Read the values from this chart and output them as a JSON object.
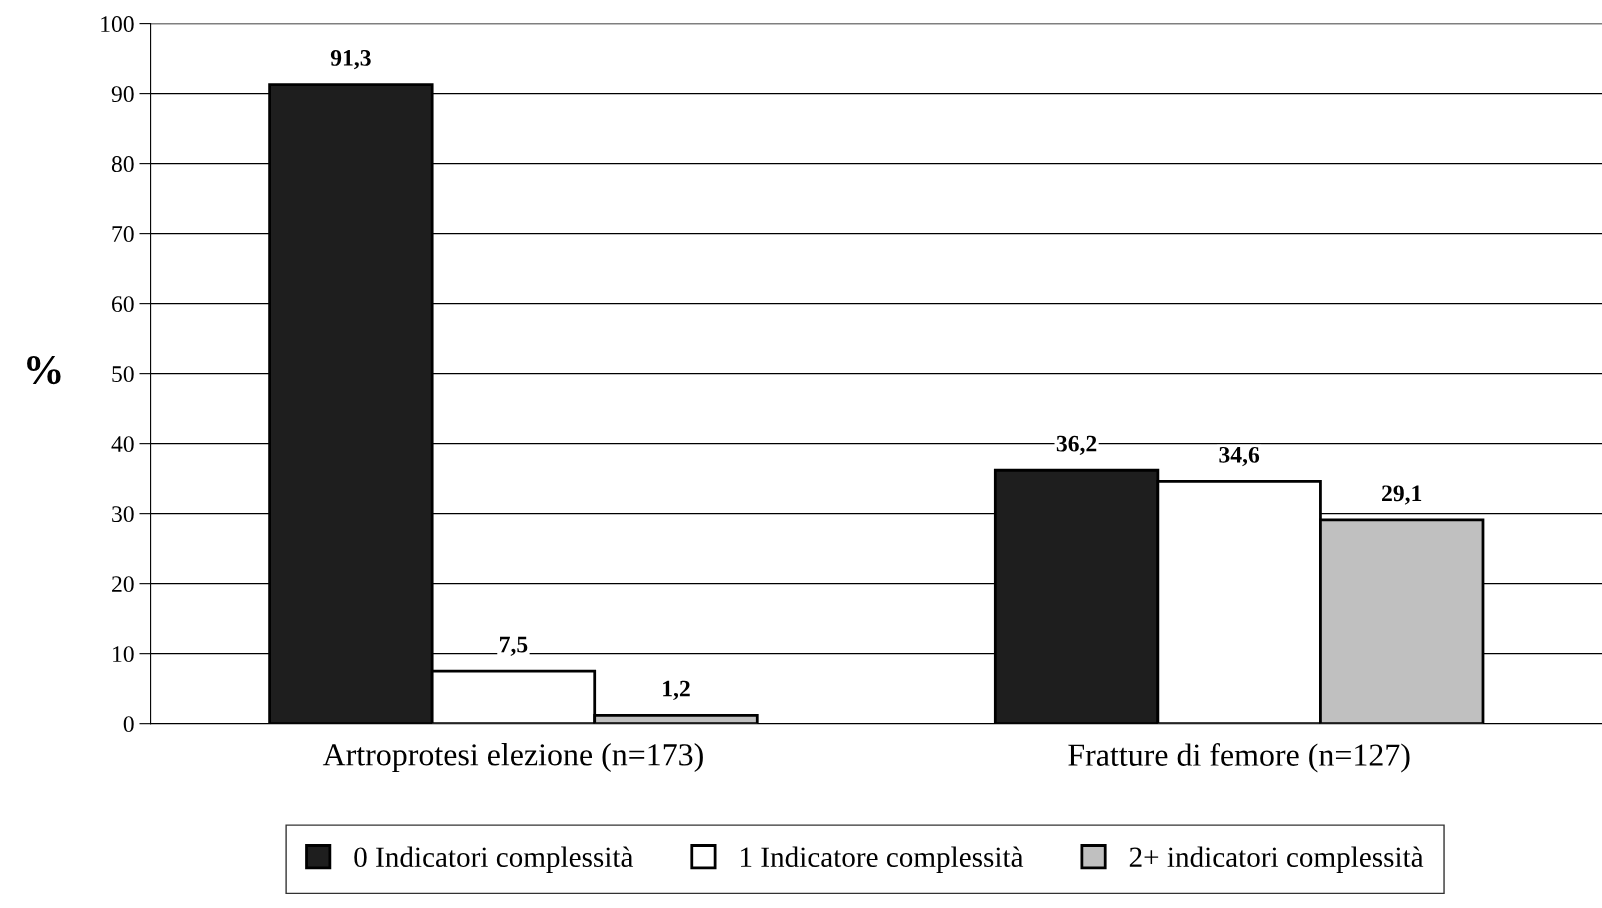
{
  "chart_data": {
    "type": "bar",
    "ylabel": "%",
    "categories": [
      "Artroprotesi elezione (n=173)",
      "Fratture di femore (n=127)"
    ],
    "series": [
      {
        "name": "0 Indicatori complessità",
        "color": "#1e1e1e",
        "values": [
          91.3,
          36.2
        ],
        "value_labels": [
          "91,3",
          "36,2"
        ]
      },
      {
        "name": "1 Indicatore complessità",
        "color": "#ffffff",
        "values": [
          7.5,
          34.6
        ],
        "value_labels": [
          "7,5",
          "34,6"
        ]
      },
      {
        "name": "2+ indicatori complessità",
        "color": "#c0c0c0",
        "values": [
          1.2,
          29.1
        ],
        "value_labels": [
          "1,2",
          "29,1"
        ]
      }
    ],
    "ylim": [
      0,
      100
    ],
    "yticks": [
      0,
      10,
      20,
      30,
      40,
      50,
      60,
      70,
      80,
      90,
      100
    ],
    "grid": "y",
    "legend": "bottom"
  }
}
